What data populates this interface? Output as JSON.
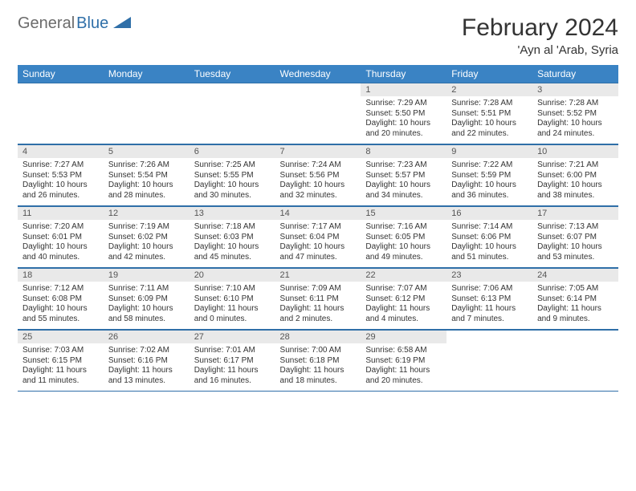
{
  "brand": {
    "part1": "General",
    "part2": "Blue"
  },
  "title": "February 2024",
  "location": "'Ayn al 'Arab, Syria",
  "colors": {
    "header_bg": "#3a83c4",
    "header_text": "#ffffff",
    "rule": "#2f6fa8",
    "daynum_bg": "#e9e9e9",
    "text": "#333333",
    "logo_gray": "#6b6b6b",
    "logo_blue": "#2f6fa8"
  },
  "weekdays": [
    "Sunday",
    "Monday",
    "Tuesday",
    "Wednesday",
    "Thursday",
    "Friday",
    "Saturday"
  ],
  "weeks": [
    [
      {
        "empty": true
      },
      {
        "empty": true
      },
      {
        "empty": true
      },
      {
        "empty": true
      },
      {
        "day": "1",
        "sunrise": "Sunrise: 7:29 AM",
        "sunset": "Sunset: 5:50 PM",
        "daylight": "Daylight: 10 hours and 20 minutes."
      },
      {
        "day": "2",
        "sunrise": "Sunrise: 7:28 AM",
        "sunset": "Sunset: 5:51 PM",
        "daylight": "Daylight: 10 hours and 22 minutes."
      },
      {
        "day": "3",
        "sunrise": "Sunrise: 7:28 AM",
        "sunset": "Sunset: 5:52 PM",
        "daylight": "Daylight: 10 hours and 24 minutes."
      }
    ],
    [
      {
        "day": "4",
        "sunrise": "Sunrise: 7:27 AM",
        "sunset": "Sunset: 5:53 PM",
        "daylight": "Daylight: 10 hours and 26 minutes."
      },
      {
        "day": "5",
        "sunrise": "Sunrise: 7:26 AM",
        "sunset": "Sunset: 5:54 PM",
        "daylight": "Daylight: 10 hours and 28 minutes."
      },
      {
        "day": "6",
        "sunrise": "Sunrise: 7:25 AM",
        "sunset": "Sunset: 5:55 PM",
        "daylight": "Daylight: 10 hours and 30 minutes."
      },
      {
        "day": "7",
        "sunrise": "Sunrise: 7:24 AM",
        "sunset": "Sunset: 5:56 PM",
        "daylight": "Daylight: 10 hours and 32 minutes."
      },
      {
        "day": "8",
        "sunrise": "Sunrise: 7:23 AM",
        "sunset": "Sunset: 5:57 PM",
        "daylight": "Daylight: 10 hours and 34 minutes."
      },
      {
        "day": "9",
        "sunrise": "Sunrise: 7:22 AM",
        "sunset": "Sunset: 5:59 PM",
        "daylight": "Daylight: 10 hours and 36 minutes."
      },
      {
        "day": "10",
        "sunrise": "Sunrise: 7:21 AM",
        "sunset": "Sunset: 6:00 PM",
        "daylight": "Daylight: 10 hours and 38 minutes."
      }
    ],
    [
      {
        "day": "11",
        "sunrise": "Sunrise: 7:20 AM",
        "sunset": "Sunset: 6:01 PM",
        "daylight": "Daylight: 10 hours and 40 minutes."
      },
      {
        "day": "12",
        "sunrise": "Sunrise: 7:19 AM",
        "sunset": "Sunset: 6:02 PM",
        "daylight": "Daylight: 10 hours and 42 minutes."
      },
      {
        "day": "13",
        "sunrise": "Sunrise: 7:18 AM",
        "sunset": "Sunset: 6:03 PM",
        "daylight": "Daylight: 10 hours and 45 minutes."
      },
      {
        "day": "14",
        "sunrise": "Sunrise: 7:17 AM",
        "sunset": "Sunset: 6:04 PM",
        "daylight": "Daylight: 10 hours and 47 minutes."
      },
      {
        "day": "15",
        "sunrise": "Sunrise: 7:16 AM",
        "sunset": "Sunset: 6:05 PM",
        "daylight": "Daylight: 10 hours and 49 minutes."
      },
      {
        "day": "16",
        "sunrise": "Sunrise: 7:14 AM",
        "sunset": "Sunset: 6:06 PM",
        "daylight": "Daylight: 10 hours and 51 minutes."
      },
      {
        "day": "17",
        "sunrise": "Sunrise: 7:13 AM",
        "sunset": "Sunset: 6:07 PM",
        "daylight": "Daylight: 10 hours and 53 minutes."
      }
    ],
    [
      {
        "day": "18",
        "sunrise": "Sunrise: 7:12 AM",
        "sunset": "Sunset: 6:08 PM",
        "daylight": "Daylight: 10 hours and 55 minutes."
      },
      {
        "day": "19",
        "sunrise": "Sunrise: 7:11 AM",
        "sunset": "Sunset: 6:09 PM",
        "daylight": "Daylight: 10 hours and 58 minutes."
      },
      {
        "day": "20",
        "sunrise": "Sunrise: 7:10 AM",
        "sunset": "Sunset: 6:10 PM",
        "daylight": "Daylight: 11 hours and 0 minutes."
      },
      {
        "day": "21",
        "sunrise": "Sunrise: 7:09 AM",
        "sunset": "Sunset: 6:11 PM",
        "daylight": "Daylight: 11 hours and 2 minutes."
      },
      {
        "day": "22",
        "sunrise": "Sunrise: 7:07 AM",
        "sunset": "Sunset: 6:12 PM",
        "daylight": "Daylight: 11 hours and 4 minutes."
      },
      {
        "day": "23",
        "sunrise": "Sunrise: 7:06 AM",
        "sunset": "Sunset: 6:13 PM",
        "daylight": "Daylight: 11 hours and 7 minutes."
      },
      {
        "day": "24",
        "sunrise": "Sunrise: 7:05 AM",
        "sunset": "Sunset: 6:14 PM",
        "daylight": "Daylight: 11 hours and 9 minutes."
      }
    ],
    [
      {
        "day": "25",
        "sunrise": "Sunrise: 7:03 AM",
        "sunset": "Sunset: 6:15 PM",
        "daylight": "Daylight: 11 hours and 11 minutes."
      },
      {
        "day": "26",
        "sunrise": "Sunrise: 7:02 AM",
        "sunset": "Sunset: 6:16 PM",
        "daylight": "Daylight: 11 hours and 13 minutes."
      },
      {
        "day": "27",
        "sunrise": "Sunrise: 7:01 AM",
        "sunset": "Sunset: 6:17 PM",
        "daylight": "Daylight: 11 hours and 16 minutes."
      },
      {
        "day": "28",
        "sunrise": "Sunrise: 7:00 AM",
        "sunset": "Sunset: 6:18 PM",
        "daylight": "Daylight: 11 hours and 18 minutes."
      },
      {
        "day": "29",
        "sunrise": "Sunrise: 6:58 AM",
        "sunset": "Sunset: 6:19 PM",
        "daylight": "Daylight: 11 hours and 20 minutes."
      },
      {
        "empty": true
      },
      {
        "empty": true
      }
    ]
  ]
}
